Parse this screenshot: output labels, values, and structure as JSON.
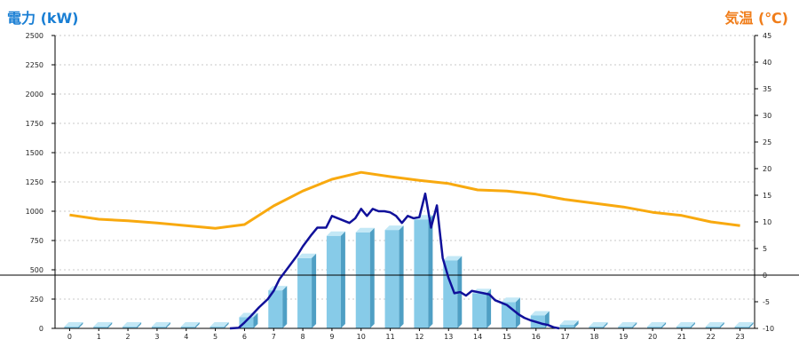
{
  "chart_data": {
    "type": "bar",
    "left_axis_title": "電力 (kW)",
    "right_axis_title": "気温 (℃)",
    "categories": [
      "0",
      "1",
      "2",
      "3",
      "4",
      "5",
      "6",
      "7",
      "8",
      "9",
      "10",
      "11",
      "12",
      "13",
      "14",
      "15",
      "16",
      "17",
      "18",
      "19",
      "20",
      "21",
      "22",
      "23"
    ],
    "ylim": [
      0,
      2500
    ],
    "yticks": [
      "2500",
      "2250",
      "2000",
      "1750",
      "1500",
      "1250",
      "1000",
      "750",
      "500",
      "250",
      "0"
    ],
    "y2lim": [
      -10,
      45
    ],
    "y2ticks": [
      "45",
      "40",
      "35",
      "30",
      "25",
      "20",
      "15",
      "10",
      "5",
      "0",
      "-5",
      "-10"
    ],
    "grid": true,
    "zero_line_temp": 0,
    "series": [
      {
        "kind": "bar",
        "axis": "left",
        "values": [
          15,
          15,
          15,
          15,
          15,
          15,
          95,
          325,
          600,
          790,
          820,
          840,
          930,
          580,
          300,
          225,
          110,
          30,
          15,
          15,
          15,
          15,
          15,
          15
        ]
      },
      {
        "kind": "line",
        "axis": "left",
        "x": [
          5.5,
          5.8,
          6.0,
          6.2,
          6.5,
          6.8,
          7.0,
          7.2,
          7.5,
          7.8,
          8.0,
          8.3,
          8.5,
          8.8,
          9.0,
          9.2,
          9.4,
          9.6,
          9.8,
          10.0,
          10.2,
          10.4,
          10.6,
          10.8,
          11.0,
          11.2,
          11.4,
          11.6,
          11.8,
          12.0,
          12.2,
          12.4,
          12.6,
          12.8,
          13.0,
          13.2,
          13.4,
          13.6,
          13.8,
          14.0,
          14.2,
          14.4,
          14.6,
          14.8,
          15.0,
          15.2,
          15.4,
          15.6,
          15.8,
          16.0,
          16.2,
          16.4,
          16.6,
          16.8
        ],
        "values": [
          0,
          5,
          50,
          100,
          180,
          250,
          320,
          420,
          520,
          620,
          700,
          800,
          860,
          860,
          960,
          940,
          920,
          900,
          940,
          1020,
          960,
          1020,
          1000,
          1000,
          990,
          960,
          900,
          960,
          940,
          950,
          1150,
          860,
          1050,
          600,
          430,
          300,
          310,
          280,
          320,
          310,
          300,
          290,
          240,
          220,
          200,
          160,
          120,
          90,
          70,
          55,
          40,
          30,
          10,
          0
        ]
      },
      {
        "kind": "line",
        "axis": "right",
        "values": [
          11.3,
          10.5,
          10.2,
          9.8,
          9.3,
          8.8,
          9.5,
          13.0,
          15.8,
          18.0,
          19.3,
          18.5,
          17.8,
          17.2,
          16.0,
          15.8,
          15.2,
          14.2,
          13.5,
          12.8,
          11.8,
          11.2,
          10.0,
          9.3
        ]
      }
    ],
    "colors": {
      "bar_face": "#87cbe8",
      "bar_side": "#4f9fc4",
      "bar_top": "#c3e8f6",
      "power_line": "#10109a",
      "temp_line": "#f8a90f",
      "left_title": "#1a7fd4",
      "right_title": "#f07d1a",
      "grid": "#c8c8c8",
      "axis": "#000000"
    }
  }
}
